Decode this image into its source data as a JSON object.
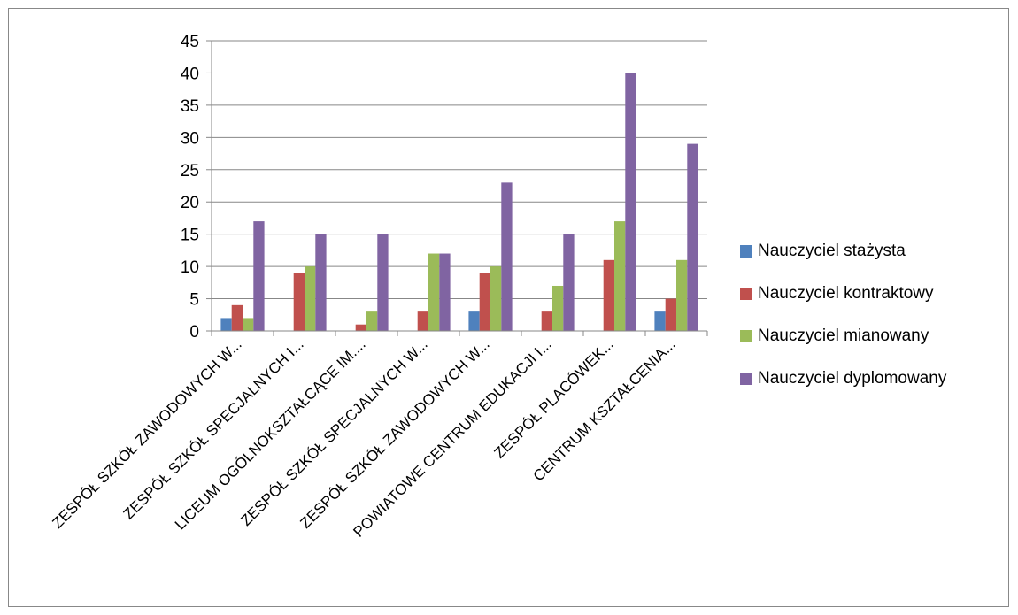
{
  "chart_data": {
    "type": "bar",
    "categories": [
      "ZESPÓŁ SZKÓŁ ZAWODOWYCH W...",
      "ZESPÓŁ SZKÓŁ SPECJALNYCH I...",
      "LICEUM OGÓLNOKSZTAŁCĄCE IM....",
      "ZESPÓŁ SZKÓŁ SPECJALNYCH W...",
      "ZESPÓŁ SZKÓŁ ZAWODOWYCH W...",
      "POWIATOWE CENTRUM EDUKACJI I...",
      "ZESPÓŁ PLACÓWEK...",
      "CENTRUM KSZTAŁCENIA..."
    ],
    "series": [
      {
        "name": "Nauczyciel stażysta",
        "color": "#4F81BD",
        "values": [
          2,
          0,
          0,
          0,
          3,
          0,
          0,
          3
        ]
      },
      {
        "name": "Nauczyciel kontraktowy",
        "color": "#C0504D",
        "values": [
          4,
          9,
          1,
          3,
          9,
          3,
          11,
          5
        ]
      },
      {
        "name": "Nauczyciel mianowany",
        "color": "#9BBB59",
        "values": [
          2,
          10,
          3,
          12,
          10,
          7,
          17,
          11
        ]
      },
      {
        "name": "Nauczyciel dyplomowany",
        "color": "#8064A2",
        "values": [
          17,
          15,
          15,
          12,
          23,
          15,
          40,
          29
        ]
      }
    ],
    "ylim": [
      0,
      45
    ],
    "yticks": [
      0,
      5,
      10,
      15,
      20,
      25,
      30,
      35,
      40,
      45
    ],
    "grid": true,
    "legend_position": "right",
    "title": "",
    "xlabel": "",
    "ylabel": ""
  }
}
